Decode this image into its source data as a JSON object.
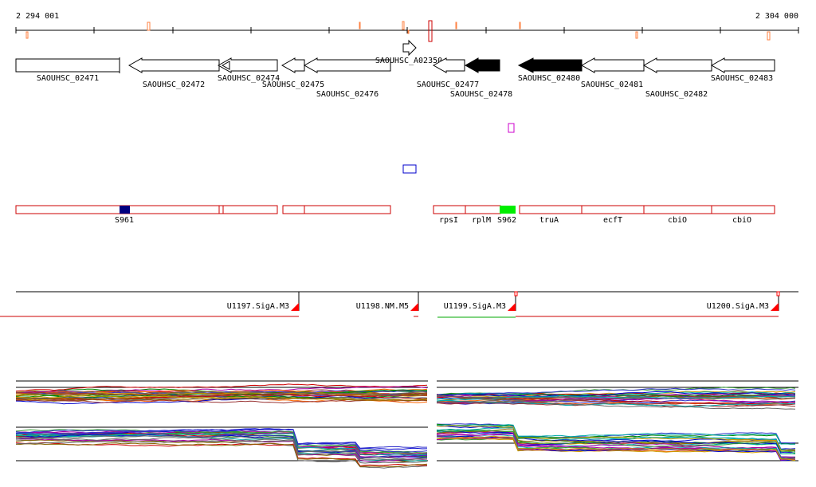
{
  "ruler": {
    "start_label": "2 294 001",
    "end_label": "2 304 000"
  },
  "genes": [
    {
      "name": "SAOUHSC_02471",
      "strand": "+",
      "filled": false
    },
    {
      "name": "SAOUHSC_02472",
      "strand": "-",
      "filled": false
    },
    {
      "name": "SAOUHSC_02474",
      "strand": "-",
      "filled": false
    },
    {
      "name": "SAOUHSC_02475",
      "strand": "-",
      "filled": false
    },
    {
      "name": "SAOUHSC_02476",
      "strand": "-",
      "filled": false
    },
    {
      "name": "SAOUHSC_A02350",
      "strand": "+",
      "filled": false
    },
    {
      "name": "SAOUHSC_02477",
      "strand": "-",
      "filled": false
    },
    {
      "name": "SAOUHSC_02478",
      "strand": "-",
      "filled": true
    },
    {
      "name": "SAOUHSC_02480",
      "strand": "-",
      "filled": true
    },
    {
      "name": "SAOUHSC_02481",
      "strand": "-",
      "filled": false
    },
    {
      "name": "SAOUHSC_02482",
      "strand": "-",
      "filled": false
    },
    {
      "name": "SAOUHSC_02483",
      "strand": "-",
      "filled": false
    }
  ],
  "features": [
    {
      "name": "S961",
      "color": "#000080"
    },
    {
      "name": "rpsI",
      "color": ""
    },
    {
      "name": "rplM",
      "color": ""
    },
    {
      "name": "S962",
      "color": "#00ee00"
    },
    {
      "name": "truA",
      "color": ""
    },
    {
      "name": "ecfT",
      "color": ""
    },
    {
      "name": "cbiO",
      "color": ""
    },
    {
      "name": "cbiO",
      "color": ""
    }
  ],
  "promoters": [
    {
      "name": "U1197.SigA.M3"
    },
    {
      "name": "U1198.NM.M5"
    },
    {
      "name": "U1199.SigA.M3"
    },
    {
      "name": "U1200.SigA.M3"
    }
  ],
  "colors": {
    "gene_fill": "#000000",
    "feature_outline": "#cc0000",
    "promoter_marker": "#ff0000",
    "tick_marker": "#ff8040",
    "misc_box_blue": "#0000cc",
    "misc_box_magenta": "#cc00cc"
  }
}
